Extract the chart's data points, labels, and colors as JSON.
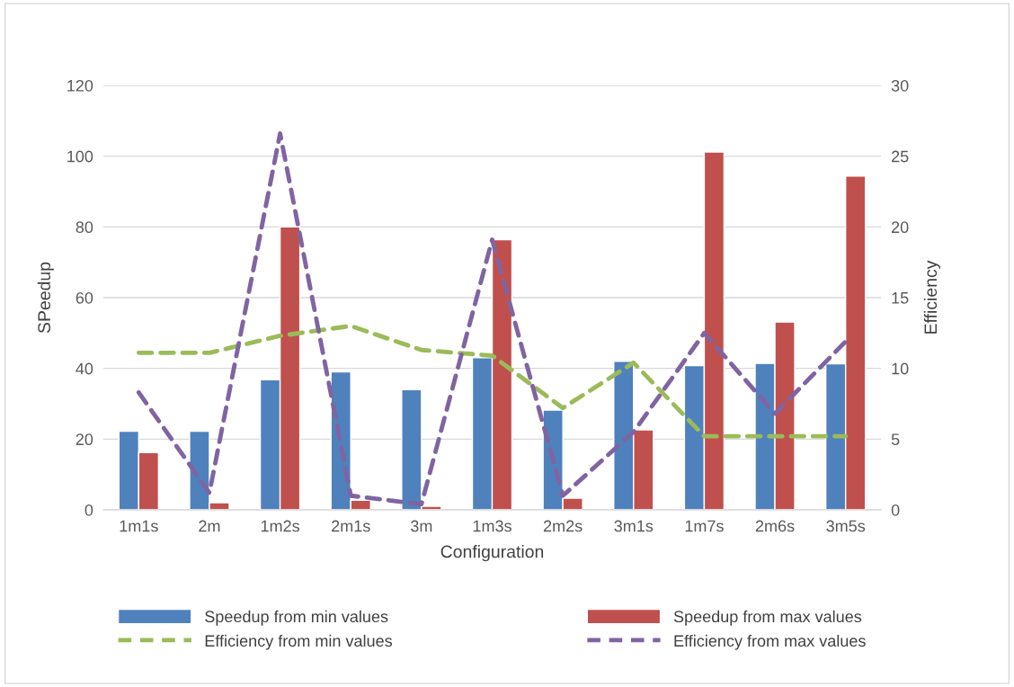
{
  "chart_data": {
    "type": "bar",
    "xlabel": "Configuration",
    "ylabel": "SPeedup",
    "y2label": "Efficiency",
    "categories": [
      "1m1s",
      "2m",
      "1m2s",
      "2m1s",
      "3m",
      "1m3s",
      "2m2s",
      "3m1s",
      "1m7s",
      "2m6s",
      "3m5s"
    ],
    "series": [
      {
        "name": "Speedup from min values",
        "color": "#4f81bd",
        "values": [
          22.2,
          22.2,
          36.8,
          39,
          34,
          43,
          28.2,
          42,
          40.8,
          41.4,
          41.3
        ]
      },
      {
        "name": "Speedup from max values",
        "color": "#c0504d",
        "values": [
          16.2,
          2,
          80,
          2.7,
          1,
          76.4,
          3.3,
          22.6,
          101.2,
          53.1,
          94.4
        ]
      },
      {
        "name": "Efficiency from min values",
        "type": "line",
        "axis": "y2",
        "line_style": "dashed",
        "color": "#9bbb59",
        "values": [
          11.1,
          11.1,
          12.3,
          13,
          11.3,
          10.9,
          7.2,
          10.4,
          5.2,
          5.2,
          5.2
        ]
      },
      {
        "name": "Efficiency from max values",
        "type": "line",
        "axis": "y2",
        "line_style": "dashed",
        "color": "#8064a2",
        "values": [
          8.3,
          1.2,
          26.6,
          1,
          0.4,
          19.1,
          1,
          5.5,
          12.5,
          6.8,
          11.9
        ]
      }
    ],
    "ylim": [
      0,
      120
    ],
    "yticks": [
      0,
      20,
      40,
      60,
      80,
      100,
      120
    ],
    "y2lim": [
      0,
      30
    ],
    "y2ticks": [
      0,
      5,
      10,
      15,
      20,
      25,
      30
    ],
    "grid": "y",
    "legend": "bottom"
  }
}
